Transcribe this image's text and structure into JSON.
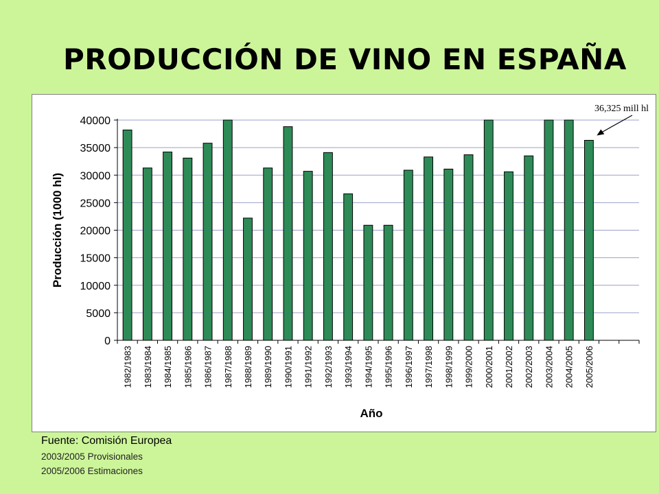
{
  "page": {
    "title": "PRODUCCIÓN DE VINO EN ESPAÑA",
    "source": "Fuente: Comisión Europea",
    "notes": [
      "2003/2005 Provisionales",
      "2005/2006 Estimaciones"
    ]
  },
  "chart_data": {
    "type": "bar",
    "title": "",
    "xlabel": "Año",
    "ylabel": "Producción (1000 hl)",
    "ylim": [
      0,
      40000
    ],
    "yticks": [
      0,
      5000,
      10000,
      15000,
      20000,
      25000,
      30000,
      35000,
      40000
    ],
    "grid": true,
    "categories": [
      "1982/1983",
      "1983/1984",
      "1984/1985",
      "1985/1986",
      "1986/1987",
      "1987/1988",
      "1988/1989",
      "1989/1990",
      "1990/1991",
      "1991/1992",
      "1992/1993",
      "1993/1994",
      "1994/1995",
      "1995/1996",
      "1996/1997",
      "1997/1998",
      "1998/1999",
      "1999/2000",
      "2000/2001",
      "2001/2002",
      "2002/2003",
      "2003/2004",
      "2004/2005",
      "2005/2006"
    ],
    "values": [
      38200,
      31300,
      34200,
      33100,
      35800,
      40200,
      22200,
      31300,
      38800,
      30700,
      34100,
      26600,
      20900,
      20900,
      30900,
      33300,
      31100,
      33700,
      41000,
      30600,
      33500,
      41000,
      41000,
      36325
    ],
    "annotation": {
      "text": "36,325 mill hl",
      "category": "2005/2006"
    },
    "colors": {
      "bar": "#2e8b57",
      "bar_stroke": "#000000",
      "grid": "#9aa0c8"
    }
  }
}
